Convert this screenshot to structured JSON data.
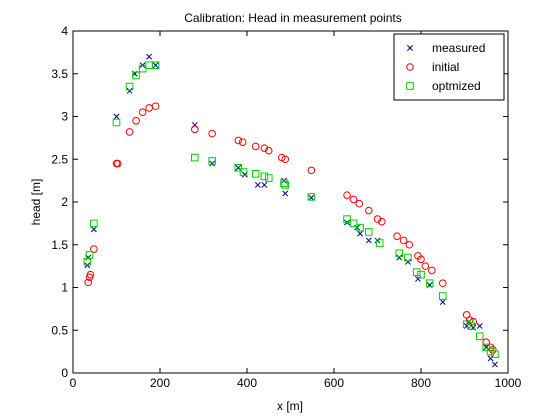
{
  "chart_data": {
    "type": "scatter",
    "title": "Calibration: Head in measurement points",
    "xlabel": "x [m]",
    "ylabel": "head [m]",
    "xlim": [
      0,
      1000
    ],
    "ylim": [
      0,
      4
    ],
    "x_ticks": [
      0,
      200,
      400,
      600,
      800,
      1000
    ],
    "y_ticks": [
      0,
      0.5,
      1,
      1.5,
      2,
      2.5,
      3,
      3.5,
      4
    ],
    "x_tick_labels": [
      "0",
      "200",
      "400",
      "600",
      "800",
      "1000"
    ],
    "y_tick_labels": [
      "0",
      "0.5",
      "1",
      "1.5",
      "2",
      "2.5",
      "3",
      "3.5",
      "4"
    ],
    "grid": false,
    "legend_position": "top-right",
    "series": [
      {
        "name": "measured",
        "marker": "x",
        "color": "#00008b",
        "points": [
          [
            33,
            1.26
          ],
          [
            35,
            1.35
          ],
          [
            48,
            1.68
          ],
          [
            100,
            3.0
          ],
          [
            130,
            3.3
          ],
          [
            142,
            3.5
          ],
          [
            160,
            3.6
          ],
          [
            175,
            3.7
          ],
          [
            190,
            3.6
          ],
          [
            280,
            2.9
          ],
          [
            320,
            2.45
          ],
          [
            380,
            2.4
          ],
          [
            395,
            2.32
          ],
          [
            425,
            2.2
          ],
          [
            440,
            2.2
          ],
          [
            485,
            2.25
          ],
          [
            488,
            2.1
          ],
          [
            548,
            2.05
          ],
          [
            630,
            1.76
          ],
          [
            653,
            1.7
          ],
          [
            660,
            1.63
          ],
          [
            680,
            1.55
          ],
          [
            700,
            1.55
          ],
          [
            750,
            1.35
          ],
          [
            770,
            1.3
          ],
          [
            793,
            1.1
          ],
          [
            820,
            1.03
          ],
          [
            850,
            0.83
          ],
          [
            905,
            0.55
          ],
          [
            910,
            0.6
          ],
          [
            920,
            0.53
          ],
          [
            935,
            0.55
          ],
          [
            950,
            0.3
          ],
          [
            960,
            0.17
          ],
          [
            970,
            0.1
          ]
        ]
      },
      {
        "name": "initial",
        "marker": "o",
        "color": "#ff0000",
        "points": [
          [
            35,
            1.06
          ],
          [
            38,
            1.12
          ],
          [
            40,
            1.15
          ],
          [
            48,
            1.45
          ],
          [
            100,
            2.45
          ],
          [
            103,
            2.45
          ],
          [
            130,
            2.82
          ],
          [
            145,
            2.95
          ],
          [
            160,
            3.05
          ],
          [
            175,
            3.1
          ],
          [
            190,
            3.12
          ],
          [
            280,
            2.85
          ],
          [
            320,
            2.8
          ],
          [
            380,
            2.72
          ],
          [
            390,
            2.7
          ],
          [
            420,
            2.65
          ],
          [
            440,
            2.63
          ],
          [
            450,
            2.6
          ],
          [
            480,
            2.52
          ],
          [
            488,
            2.5
          ],
          [
            548,
            2.37
          ],
          [
            630,
            2.08
          ],
          [
            645,
            2.03
          ],
          [
            658,
            1.98
          ],
          [
            680,
            1.9
          ],
          [
            700,
            1.8
          ],
          [
            710,
            1.77
          ],
          [
            745,
            1.6
          ],
          [
            760,
            1.55
          ],
          [
            773,
            1.5
          ],
          [
            793,
            1.37
          ],
          [
            800,
            1.33
          ],
          [
            810,
            1.25
          ],
          [
            825,
            1.2
          ],
          [
            850,
            1.05
          ],
          [
            905,
            0.68
          ],
          [
            912,
            0.62
          ],
          [
            920,
            0.6
          ],
          [
            950,
            0.36
          ],
          [
            960,
            0.3
          ],
          [
            965,
            0.27
          ]
        ]
      },
      {
        "name": "optmized",
        "marker": "square",
        "color": "#00d000",
        "points": [
          [
            33,
            1.3
          ],
          [
            38,
            1.38
          ],
          [
            48,
            1.75
          ],
          [
            100,
            2.93
          ],
          [
            130,
            3.35
          ],
          [
            145,
            3.48
          ],
          [
            160,
            3.56
          ],
          [
            175,
            3.6
          ],
          [
            190,
            3.6
          ],
          [
            280,
            2.52
          ],
          [
            320,
            2.48
          ],
          [
            380,
            2.4
          ],
          [
            392,
            2.35
          ],
          [
            420,
            2.33
          ],
          [
            440,
            2.3
          ],
          [
            450,
            2.28
          ],
          [
            485,
            2.22
          ],
          [
            488,
            2.2
          ],
          [
            548,
            2.06
          ],
          [
            630,
            1.8
          ],
          [
            645,
            1.75
          ],
          [
            660,
            1.7
          ],
          [
            680,
            1.65
          ],
          [
            705,
            1.52
          ],
          [
            750,
            1.4
          ],
          [
            770,
            1.35
          ],
          [
            790,
            1.18
          ],
          [
            800,
            1.15
          ],
          [
            820,
            1.05
          ],
          [
            850,
            0.9
          ],
          [
            905,
            0.57
          ],
          [
            915,
            0.55
          ],
          [
            935,
            0.43
          ],
          [
            950,
            0.3
          ],
          [
            960,
            0.25
          ],
          [
            970,
            0.22
          ]
        ]
      }
    ]
  }
}
